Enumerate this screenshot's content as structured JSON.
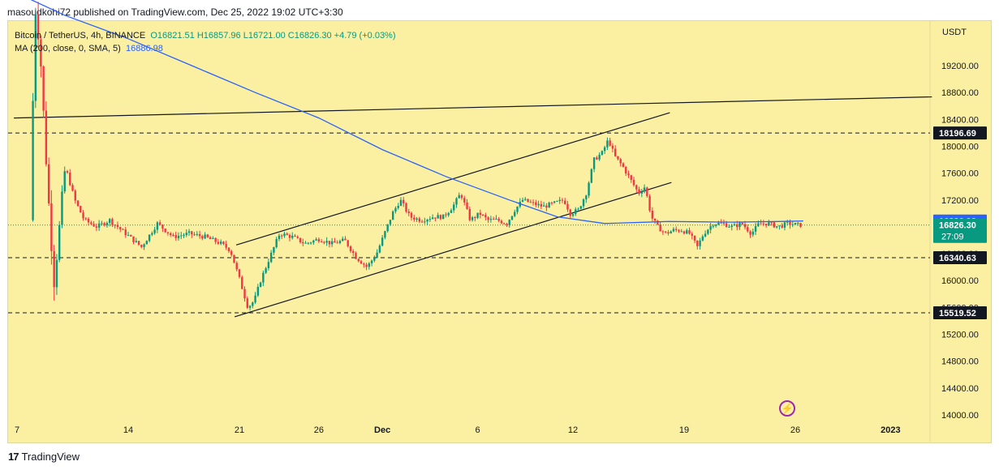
{
  "header": {
    "publisher_line": "masoudkohi72 published on TradingView.com, Dec 25, 2022 19:02 UTC+3:30"
  },
  "legend": {
    "symbol": "Bitcoin / TetherUS, 4h, BINANCE",
    "open": "O16821.51",
    "high": "H16857.96",
    "low": "L16721.00",
    "close": "C16826.30",
    "change": "+4.79 (+0.03%)",
    "ma_label": "MA (200, close, 0, SMA, 5)",
    "ma_value": "16886.98"
  },
  "footer": {
    "brand": "TradingView"
  },
  "chart_data": {
    "type": "candlestick",
    "symbol": "Bitcoin / TetherUS",
    "interval": "4h",
    "exchange": "BINANCE",
    "currency": "USDT",
    "y_range": [
      13900,
      20300
    ],
    "y_ticks": [
      14000,
      14400,
      14800,
      15200,
      15600,
      16000,
      16400,
      16800,
      17200,
      17600,
      18000,
      18400,
      18800,
      19200
    ],
    "y_tick_labels": [
      "14000.00",
      "14400.00",
      "14800.00",
      "15200.00",
      "15600.00",
      "16000.00",
      "16400.00",
      "16800.00",
      "17200.00",
      "17600.00",
      "18000.00",
      "18400.00",
      "18800.00",
      "19200.00"
    ],
    "x_ticks": [
      {
        "label": "7",
        "day": 7
      },
      {
        "label": "14",
        "day": 14
      },
      {
        "label": "21",
        "day": 21
      },
      {
        "label": "26",
        "day": 26
      },
      {
        "label": "Dec",
        "day": 30
      },
      {
        "label": "6",
        "day": 36
      },
      {
        "label": "12",
        "day": 42
      },
      {
        "label": "19",
        "day": 49
      },
      {
        "label": "26",
        "day": 56
      },
      {
        "label": "2023",
        "day": 62
      }
    ],
    "x_range_days": [
      6.8,
      65.2
    ],
    "price_labels": [
      {
        "value": 18196.69,
        "text": "18196.69",
        "color": "#131722"
      },
      {
        "value": 16886.98,
        "text": "16886.98",
        "color": "#2962ff"
      },
      {
        "value": 16826.3,
        "text": "16826.30",
        "sub": "27:09",
        "color": "#089981"
      },
      {
        "value": 16340.63,
        "text": "16340.63",
        "color": "#131722"
      },
      {
        "value": 15519.52,
        "text": "15519.52",
        "color": "#131722"
      }
    ],
    "horizontal_levels": [
      18196.69,
      16340.63,
      15519.52
    ],
    "last_price": 16826.3,
    "trendlines": [
      {
        "p1": [
          6.8,
          18420
        ],
        "p2": [
          64.6,
          18735
        ]
      },
      {
        "p1": [
          20.8,
          16530
        ],
        "p2": [
          48.1,
          18500
        ]
      },
      {
        "p1": [
          20.7,
          15460
        ],
        "p2": [
          48.2,
          17460
        ]
      }
    ],
    "ma_200": [
      [
        6.8,
        20300
      ],
      [
        10,
        19950
      ],
      [
        14,
        19600
      ],
      [
        18,
        19200
      ],
      [
        22,
        18800
      ],
      [
        26,
        18420
      ],
      [
        30,
        17950
      ],
      [
        34,
        17550
      ],
      [
        38,
        17200
      ],
      [
        41,
        16950
      ],
      [
        44,
        16850
      ],
      [
        48,
        16880
      ],
      [
        52,
        16870
      ],
      [
        55,
        16880
      ],
      [
        56.5,
        16887
      ]
    ],
    "price_path": [
      [
        8.0,
        16900
      ],
      [
        8.3,
        20100
      ],
      [
        8.6,
        19500
      ],
      [
        8.9,
        18200
      ],
      [
        9.2,
        17000
      ],
      [
        9.5,
        16000
      ],
      [
        9.8,
        16700
      ],
      [
        10.2,
        17700
      ],
      [
        10.8,
        17200
      ],
      [
        11.4,
        16900
      ],
      [
        12.2,
        16800
      ],
      [
        13,
        16900
      ],
      [
        14,
        16700
      ],
      [
        15,
        16500
      ],
      [
        16,
        16850
      ],
      [
        17,
        16650
      ],
      [
        18,
        16700
      ],
      [
        19,
        16650
      ],
      [
        20,
        16550
      ],
      [
        20.6,
        16450
      ],
      [
        21.2,
        16000
      ],
      [
        21.7,
        15600
      ],
      [
        22.1,
        15700
      ],
      [
        22.5,
        16000
      ],
      [
        23,
        16300
      ],
      [
        23.7,
        16700
      ],
      [
        24.5,
        16650
      ],
      [
        25.3,
        16550
      ],
      [
        26.2,
        16620
      ],
      [
        27,
        16550
      ],
      [
        27.8,
        16600
      ],
      [
        28.5,
        16350
      ],
      [
        29.2,
        16200
      ],
      [
        29.8,
        16400
      ],
      [
        30.3,
        16700
      ],
      [
        30.8,
        17000
      ],
      [
        31.3,
        17200
      ],
      [
        31.9,
        16950
      ],
      [
        32.6,
        16900
      ],
      [
        33.4,
        16950
      ],
      [
        34,
        16950
      ],
      [
        34.6,
        17100
      ],
      [
        35.1,
        17300
      ],
      [
        35.7,
        16900
      ],
      [
        36.3,
        17000
      ],
      [
        36.8,
        16900
      ],
      [
        37.4,
        16900
      ],
      [
        38,
        16850
      ],
      [
        38.5,
        17050
      ],
      [
        39,
        17200
      ],
      [
        39.6,
        17150
      ],
      [
        40.3,
        17100
      ],
      [
        41,
        17150
      ],
      [
        41.6,
        17200
      ],
      [
        42,
        17000
      ],
      [
        42.5,
        17050
      ],
      [
        43,
        17300
      ],
      [
        43.5,
        17800
      ],
      [
        44,
        17900
      ],
      [
        44.4,
        18100
      ],
      [
        44.8,
        17850
      ],
      [
        45.3,
        17700
      ],
      [
        45.8,
        17500
      ],
      [
        46.3,
        17300
      ],
      [
        46.7,
        17400
      ],
      [
        47.1,
        16950
      ],
      [
        47.5,
        16800
      ],
      [
        48,
        16700
      ],
      [
        48.5,
        16750
      ],
      [
        49,
        16750
      ],
      [
        49.5,
        16700
      ],
      [
        50,
        16500
      ],
      [
        50.4,
        16700
      ],
      [
        51,
        16850
      ],
      [
        51.6,
        16850
      ],
      [
        52.2,
        16800
      ],
      [
        52.8,
        16850
      ],
      [
        53.4,
        16700
      ],
      [
        53.9,
        16850
      ],
      [
        54.5,
        16850
      ],
      [
        55.1,
        16800
      ],
      [
        55.7,
        16850
      ],
      [
        56.4,
        16826
      ]
    ]
  }
}
